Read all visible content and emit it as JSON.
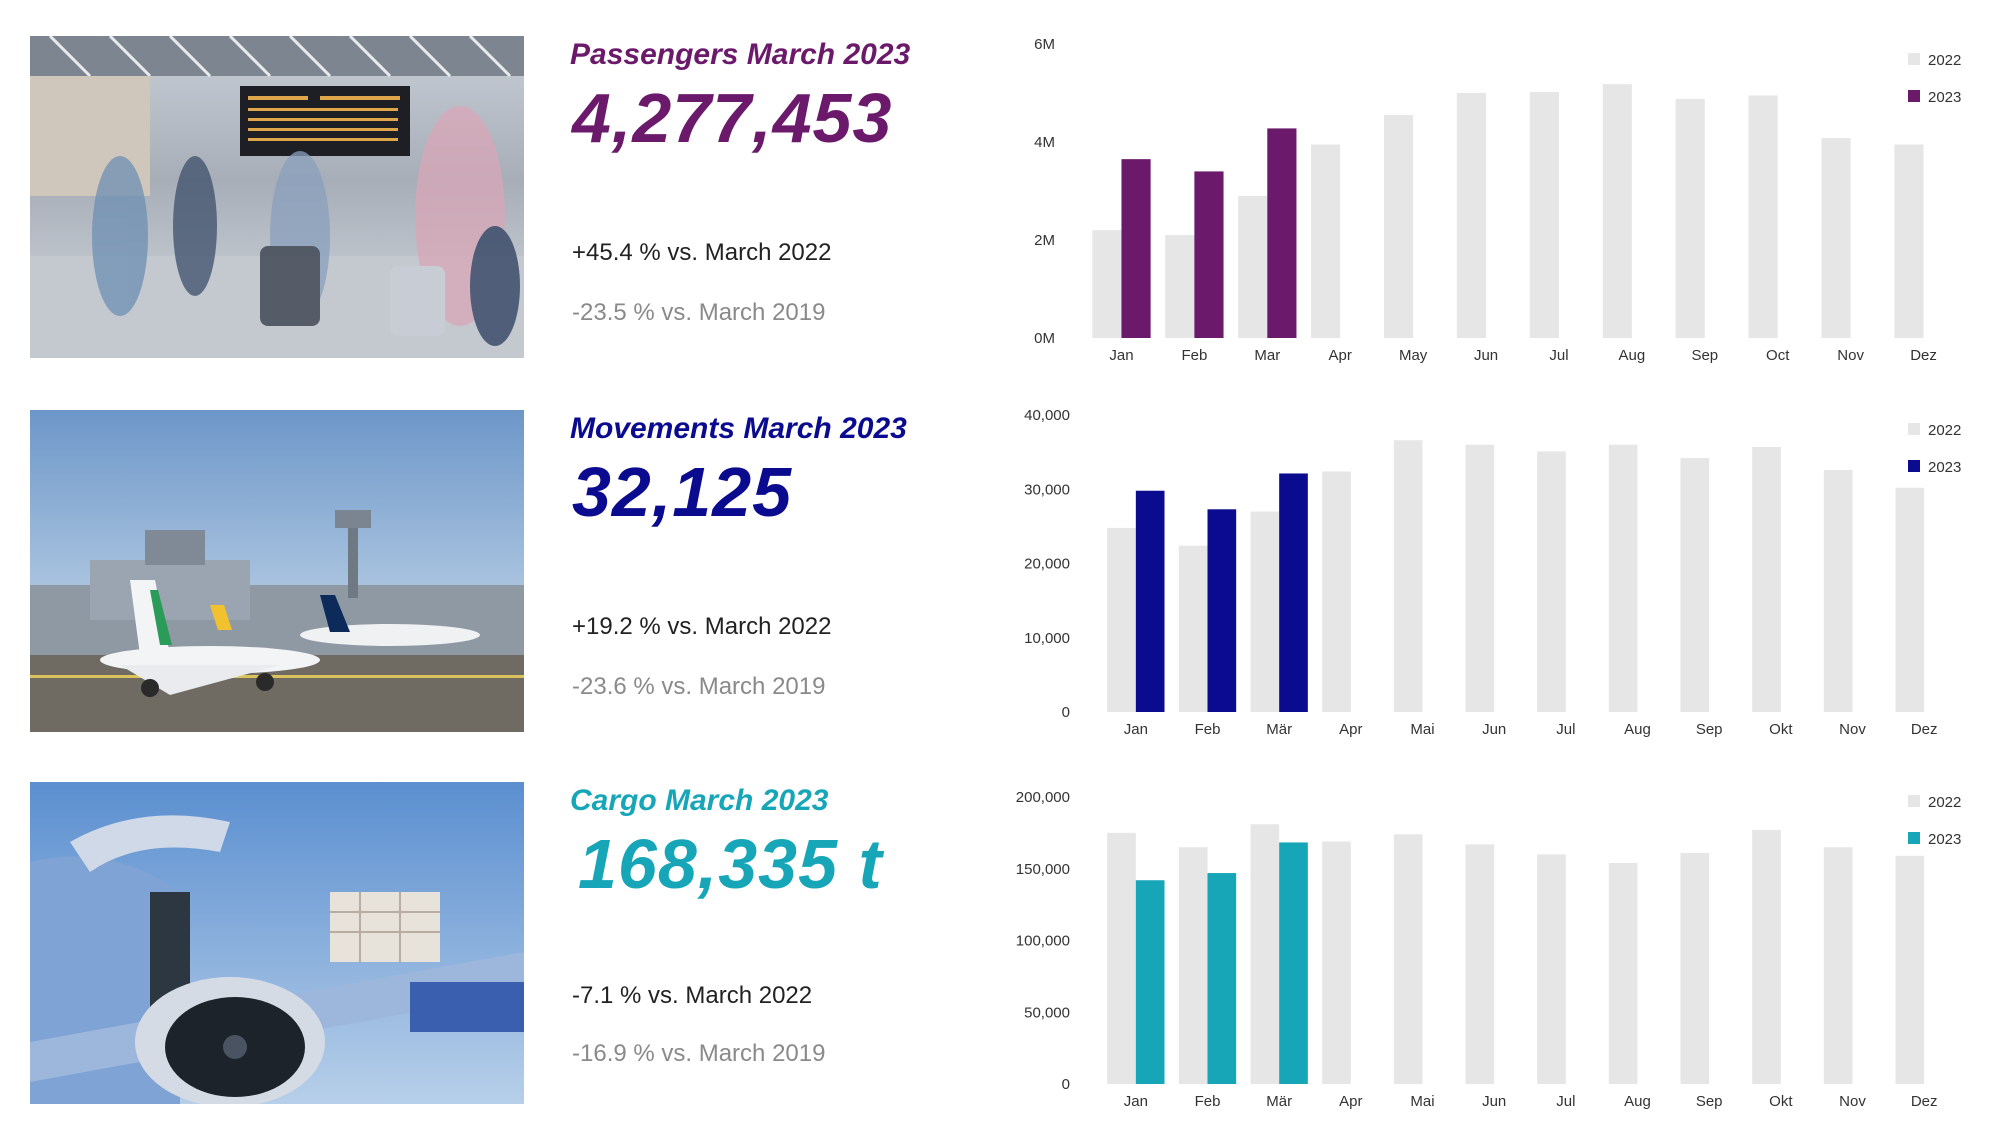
{
  "colors": {
    "passengers": "#6b1a6b",
    "movements": "#0b0b8f",
    "cargo": "#17a6b8",
    "bar_2022": "#e6e6e6"
  },
  "passengers": {
    "title": "Passengers March 2023",
    "value": "4,277,453",
    "cmp1": "+45.4 % vs. March 2022",
    "cmp2": "-23.5 % vs. March 2019"
  },
  "movements": {
    "title": "Movements March 2023",
    "value": "32,125",
    "cmp1": "+19.2 % vs. March 2022",
    "cmp2": "-23.6 % vs. March 2019"
  },
  "cargo": {
    "title": "Cargo March 2023",
    "value": "168,335 t",
    "cmp1": "-7.1 % vs. March 2022",
    "cmp2": "-16.9 % vs. March 2019"
  },
  "chart_data": [
    {
      "type": "bar",
      "categories": [
        "Jan",
        "Feb",
        "Mar",
        "Apr",
        "May",
        "Jun",
        "Jul",
        "Aug",
        "Sep",
        "Oct",
        "Nov",
        "Dez"
      ],
      "ylim": [
        0,
        6000000
      ],
      "ticks": [
        0,
        2000000,
        4000000,
        6000000
      ],
      "tick_labels": [
        "0M",
        "2M",
        "4M",
        "6M"
      ],
      "grid": false,
      "legend_position": "top-right",
      "series": [
        {
          "name": "2022",
          "values": [
            2200000,
            2100000,
            2900000,
            3950000,
            4550000,
            5000000,
            5020000,
            5180000,
            4880000,
            4950000,
            4080000,
            3950000
          ]
        },
        {
          "name": "2023",
          "values": [
            3650000,
            3400000,
            4277453,
            null,
            null,
            null,
            null,
            null,
            null,
            null,
            null,
            null
          ]
        }
      ]
    },
    {
      "type": "bar",
      "categories": [
        "Jan",
        "Feb",
        "Mär",
        "Apr",
        "Mai",
        "Jun",
        "Jul",
        "Aug",
        "Sep",
        "Okt",
        "Nov",
        "Dez"
      ],
      "ylim": [
        0,
        40000
      ],
      "ticks": [
        0,
        10000,
        20000,
        30000,
        40000
      ],
      "tick_labels": [
        "0",
        "10,000",
        "20,000",
        "30,000",
        "40,000"
      ],
      "grid": false,
      "legend_position": "top-right",
      "series": [
        {
          "name": "2022",
          "values": [
            24800,
            22400,
            27000,
            32400,
            36600,
            36000,
            35100,
            36000,
            34200,
            35700,
            32600,
            30200
          ]
        },
        {
          "name": "2023",
          "values": [
            29800,
            27300,
            32125,
            null,
            null,
            null,
            null,
            null,
            null,
            null,
            null,
            null
          ]
        }
      ]
    },
    {
      "type": "bar",
      "categories": [
        "Jan",
        "Feb",
        "Mär",
        "Apr",
        "Mai",
        "Jun",
        "Jul",
        "Aug",
        "Sep",
        "Okt",
        "Nov",
        "Dez"
      ],
      "ylim": [
        0,
        200000
      ],
      "ticks": [
        0,
        50000,
        100000,
        150000,
        200000
      ],
      "tick_labels": [
        "0",
        "50,000",
        "100,000",
        "150,000",
        "200,000"
      ],
      "grid": false,
      "legend_position": "top-right",
      "series": [
        {
          "name": "2022",
          "values": [
            175000,
            165000,
            181000,
            169000,
            174000,
            167000,
            160000,
            154000,
            161000,
            177000,
            165000,
            159000
          ]
        },
        {
          "name": "2023",
          "values": [
            142000,
            147000,
            168335,
            null,
            null,
            null,
            null,
            null,
            null,
            null,
            null,
            null
          ]
        }
      ]
    }
  ]
}
